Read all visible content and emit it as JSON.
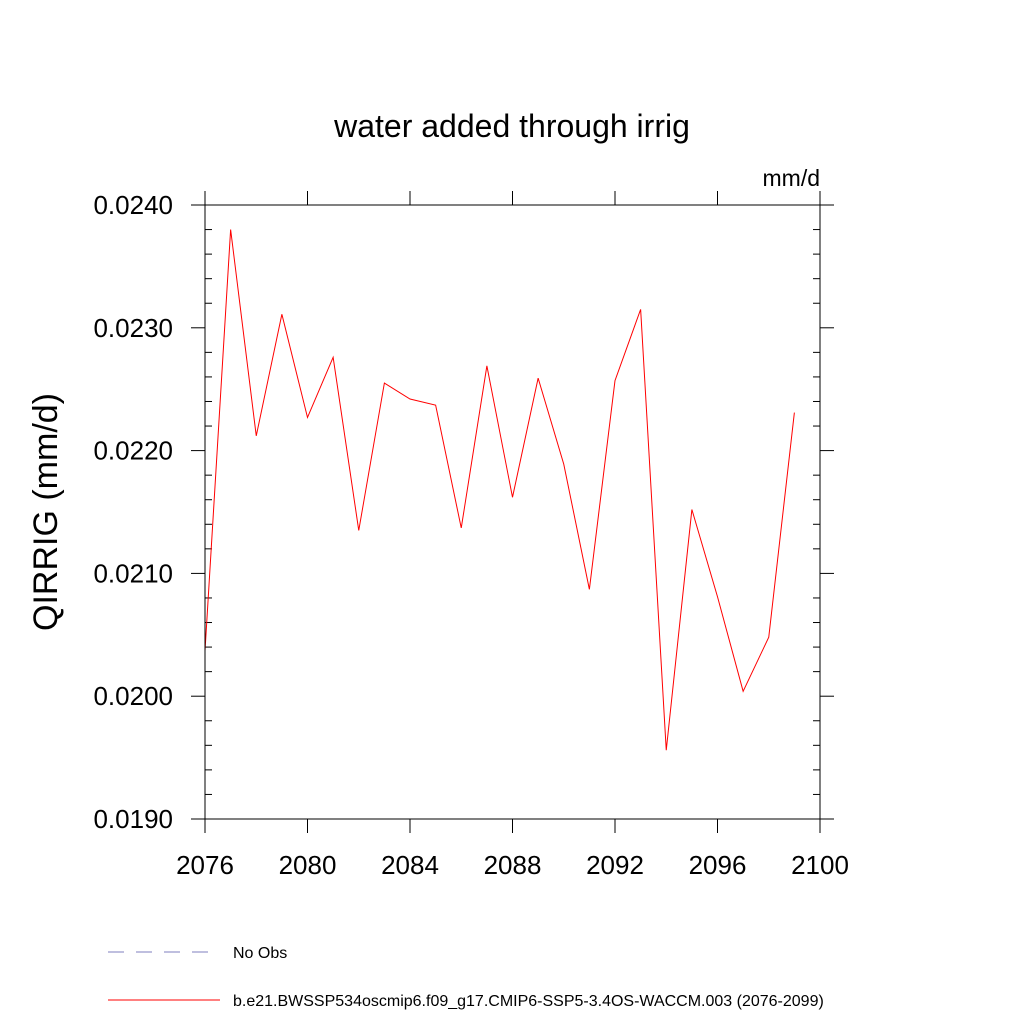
{
  "chart_data": {
    "type": "line",
    "title": "water added through irrig",
    "units": "mm/d",
    "xlabel": "",
    "ylabel": "QIRRIG  (mm/d)",
    "xlim": [
      2076,
      2100
    ],
    "ylim": [
      0.019,
      0.024
    ],
    "x_ticks": [
      "2076",
      "2080",
      "2084",
      "2088",
      "2092",
      "2096",
      "2100"
    ],
    "y_ticks": [
      "0.0190",
      "0.0200",
      "0.0210",
      "0.0220",
      "0.0230",
      "0.0240"
    ],
    "grid": false,
    "legend_position": "bottom",
    "series": [
      {
        "name": "No Obs",
        "color": "#7f7fbf",
        "dash": "dashed",
        "x": [],
        "y": []
      },
      {
        "name": "b.e21.BWSSP534oscmip6.f09_g17.CMIP6-SSP5-3.4OS-WACCM.003 (2076-2099)",
        "color": "#ff0000",
        "dash": "solid",
        "x": [
          2076,
          2077,
          2078,
          2079,
          2080,
          2081,
          2082,
          2083,
          2084,
          2085,
          2086,
          2087,
          2088,
          2089,
          2090,
          2091,
          2092,
          2093,
          2094,
          2095,
          2096,
          2097,
          2098,
          2099
        ],
        "y": [
          0.02037,
          0.0238,
          0.02212,
          0.02311,
          0.02227,
          0.02276,
          0.02135,
          0.02255,
          0.02242,
          0.02237,
          0.02137,
          0.02269,
          0.02162,
          0.02259,
          0.02189,
          0.02087,
          0.02257,
          0.02315,
          0.01956,
          0.02152,
          0.02081,
          0.02004,
          0.02048,
          0.02231
        ]
      }
    ]
  }
}
